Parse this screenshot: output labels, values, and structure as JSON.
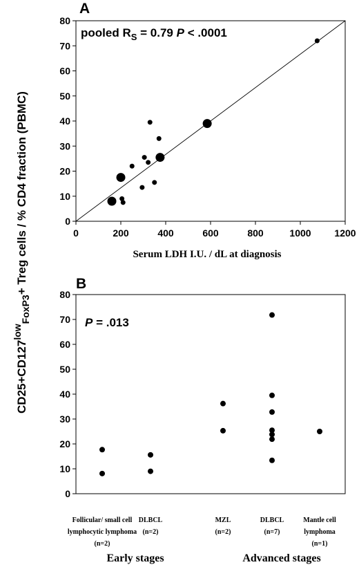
{
  "figure": {
    "y_axis_label": {
      "part1": "CD25+CD127",
      "sup": "low",
      "sub": "FoxP3",
      "part2": "+ Treg cells / % CD4 fraction (PBMC)"
    }
  },
  "chart_data": [
    {
      "panel": "A",
      "type": "scatter",
      "annotation": {
        "prefix": "pooled R",
        "sub": "S",
        "middle": "= 0.79",
        "p_symbol": "P",
        "p_text": "< .0001"
      },
      "xlabel": "Serum LDH  I.U. / dL at diagnosis",
      "xlim": [
        0,
        1200
      ],
      "ylim": [
        0,
        80
      ],
      "x_ticks": [
        0,
        200,
        400,
        600,
        800,
        1000,
        1200
      ],
      "y_ticks": [
        0,
        10,
        20,
        30,
        40,
        50,
        60,
        70,
        80
      ],
      "reference_line": {
        "from": [
          0,
          0
        ],
        "to": [
          1200,
          80
        ]
      },
      "points": [
        {
          "x": 160,
          "y": 8,
          "large": true
        },
        {
          "x": 200,
          "y": 17.5,
          "large": true
        },
        {
          "x": 205,
          "y": 9,
          "large": false
        },
        {
          "x": 210,
          "y": 7.5,
          "large": false
        },
        {
          "x": 250,
          "y": 22,
          "large": false
        },
        {
          "x": 295,
          "y": 13.5,
          "large": false
        },
        {
          "x": 305,
          "y": 25.5,
          "large": false
        },
        {
          "x": 322,
          "y": 23.5,
          "large": false
        },
        {
          "x": 330,
          "y": 39.5,
          "large": false
        },
        {
          "x": 350,
          "y": 15.5,
          "large": false
        },
        {
          "x": 370,
          "y": 33,
          "large": false
        },
        {
          "x": 375,
          "y": 25.5,
          "large": true
        },
        {
          "x": 585,
          "y": 39,
          "large": true
        },
        {
          "x": 1075,
          "y": 72,
          "large": false
        }
      ]
    },
    {
      "panel": "B",
      "type": "scatter",
      "annotation": {
        "p_symbol": "P",
        "p_text": "= .013"
      },
      "ylim": [
        0,
        80
      ],
      "y_ticks": [
        0,
        10,
        20,
        30,
        40,
        50,
        60,
        70,
        80
      ],
      "categories": [
        {
          "lines": [
            "Follicular/ small cell",
            "lymphocytic lymphoma",
            "(n=2)"
          ],
          "values": [
            17.7,
            8.1
          ]
        },
        {
          "lines": [
            "DLBCL",
            "(n=2)"
          ],
          "values": [
            15.6,
            9.0
          ]
        },
        {
          "lines": [
            "MZL",
            "(n=2)"
          ],
          "values": [
            36.2,
            25.3
          ]
        },
        {
          "lines": [
            "DLBCL",
            "(n=7)"
          ],
          "values": [
            71.8,
            39.5,
            32.8,
            25.5,
            23.8,
            21.9,
            13.4
          ]
        },
        {
          "lines": [
            "Mantle cell",
            "lymphoma",
            "(n=1)"
          ],
          "values": [
            25.0
          ]
        }
      ],
      "groups": [
        {
          "label": "Early stages"
        },
        {
          "label": "Advanced stages"
        }
      ]
    }
  ]
}
